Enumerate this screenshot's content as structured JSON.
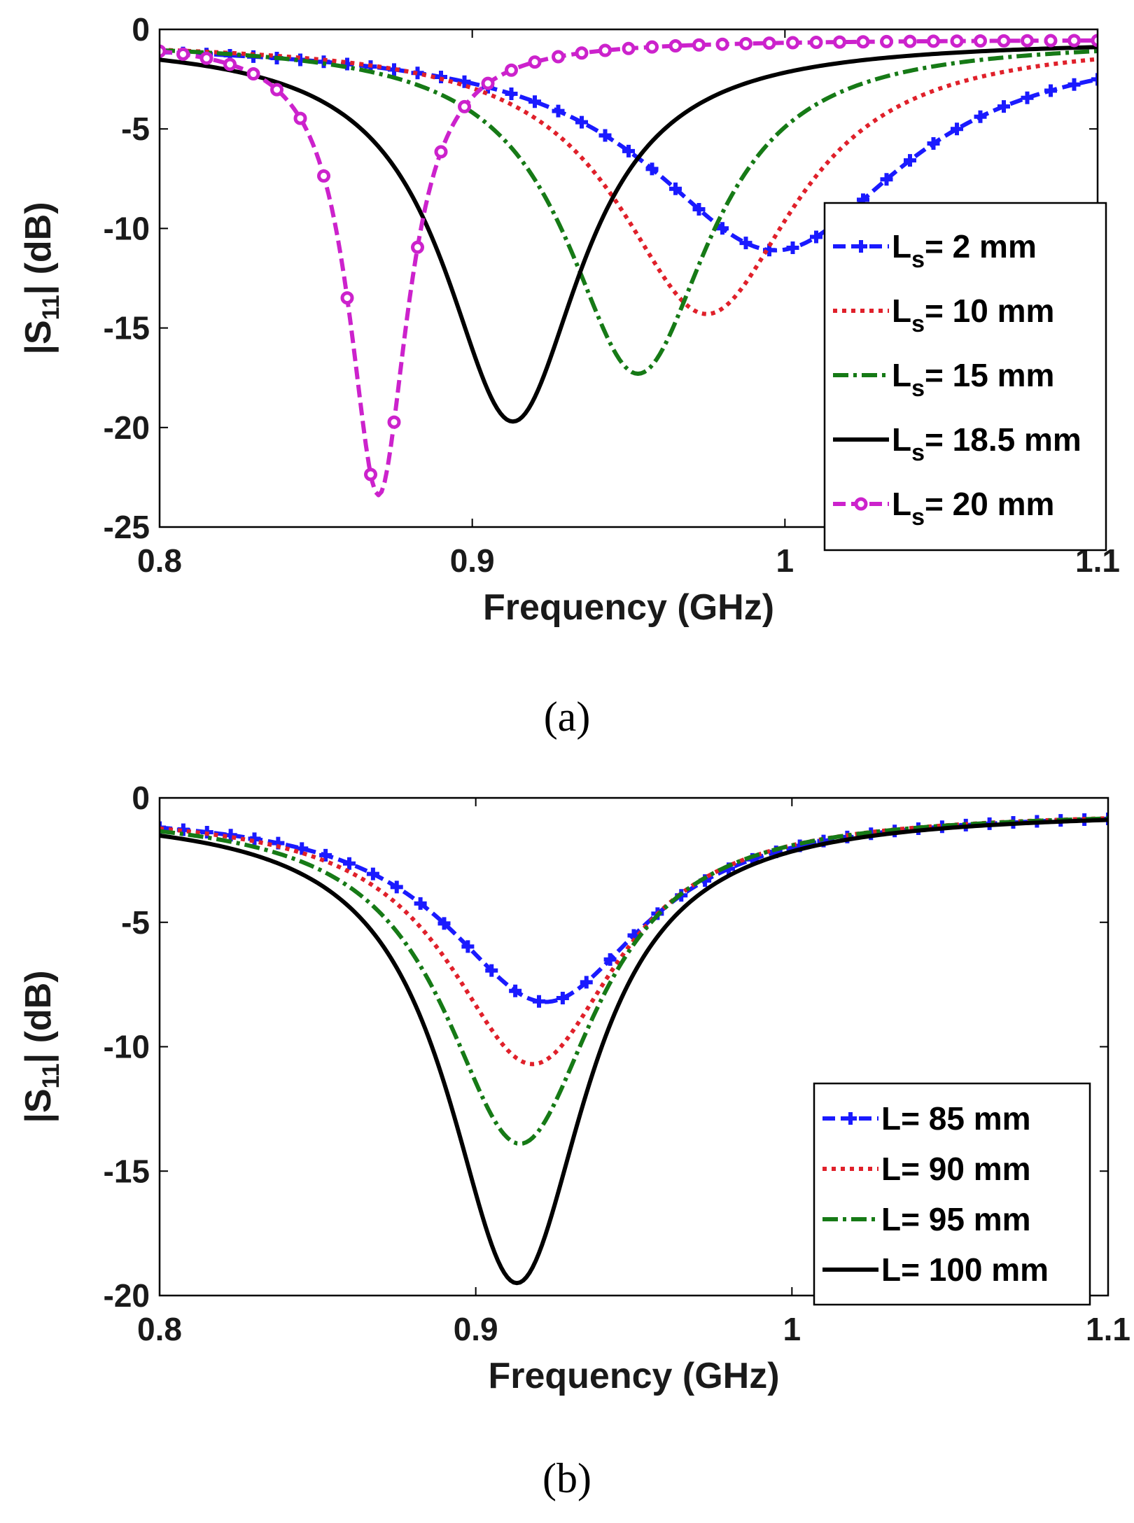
{
  "chart_data": [
    {
      "type": "line",
      "panel": "a",
      "caption": "(a)",
      "xlabel": "Frequency (GHz)",
      "ylabel_prefix": "|S",
      "ylabel_sub": "11",
      "ylabel_suffix": "| (dB)",
      "xlim": [
        0.8,
        1.1
      ],
      "ylim": [
        -25,
        0
      ],
      "xticks": [
        0.8,
        0.9,
        1.0,
        1.1
      ],
      "xtick_labels": [
        "0.8",
        "0.9",
        "1",
        "1.1"
      ],
      "yticks": [
        0,
        -5,
        -10,
        -15,
        -20,
        -25
      ],
      "ytick_labels": [
        "0",
        "-5",
        "-10",
        "-15",
        "-20",
        "-25"
      ],
      "legend_position": "right",
      "series": [
        {
          "name": "L = 2 mm",
          "legend_main": "L",
          "legend_sub": "s",
          "legend_rest": "= 2 mm",
          "color": "#1a1aff",
          "dash": "18,8",
          "marker": "plus",
          "f0": 0.997,
          "depth": 10.6,
          "q": 10
        },
        {
          "name": "L = 10 mm",
          "legend_main": "L",
          "legend_sub": "s",
          "legend_rest": "= 10 mm",
          "color": "#e0202a",
          "dash": "6,7",
          "marker": "none",
          "f0": 0.975,
          "depth": 13.8,
          "q": 14
        },
        {
          "name": "L = 15 mm",
          "legend_main": "L",
          "legend_sub": "s",
          "legend_rest": "= 15 mm",
          "color": "#167a16",
          "dash": "22,7,5,7",
          "marker": "none",
          "f0": 0.953,
          "depth": 16.8,
          "q": 17
        },
        {
          "name": "L = 18.5 mm",
          "legend_main": "L",
          "legend_sub": "s",
          "legend_rest": "= 18.5 mm",
          "color": "#000000",
          "dash": "",
          "marker": "none",
          "f0": 0.913,
          "depth": 19.2,
          "q": 17
        },
        {
          "name": "L = 20 mm",
          "legend_main": "L",
          "legend_sub": "s",
          "legend_rest": "= 20 mm",
          "color": "#cc22cc",
          "dash": "18,8",
          "marker": "circle",
          "f0": 0.87,
          "depth": 22.9,
          "q": 38
        }
      ]
    },
    {
      "type": "line",
      "panel": "b",
      "caption": "(b)",
      "xlabel": "Frequency (GHz)",
      "ylabel_prefix": "|S",
      "ylabel_sub": "11",
      "ylabel_suffix": "| (dB)",
      "xlim": [
        0.8,
        1.1
      ],
      "ylim": [
        -20,
        0
      ],
      "xticks": [
        0.8,
        0.9,
        1.0,
        1.1
      ],
      "xtick_labels": [
        "0.8",
        "0.9",
        "1",
        "1.1"
      ],
      "yticks": [
        0,
        -5,
        -10,
        -15,
        -20
      ],
      "ytick_labels": [
        "0",
        "-5",
        "-10",
        "-15",
        "-20"
      ],
      "legend_position": "bottom-right",
      "series": [
        {
          "name": "L= 85 mm",
          "legend_main": "L",
          "legend_sub": "",
          "legend_rest": "= 85 mm",
          "color": "#1a1aff",
          "dash": "18,8",
          "marker": "plus",
          "f0": 0.922,
          "depth": 7.7,
          "q": 12
        },
        {
          "name": "L= 90 mm",
          "legend_main": "L",
          "legend_sub": "",
          "legend_rest": "= 90 mm",
          "color": "#e0202a",
          "dash": "6,7",
          "marker": "none",
          "f0": 0.918,
          "depth": 10.2,
          "q": 14
        },
        {
          "name": "L= 95 mm",
          "legend_main": "L",
          "legend_sub": "",
          "legend_rest": "= 95 mm",
          "color": "#167a16",
          "dash": "22,7,5,7",
          "marker": "none",
          "f0": 0.914,
          "depth": 13.4,
          "q": 15.5
        },
        {
          "name": "L= 100 mm",
          "legend_main": "L",
          "legend_sub": "",
          "legend_rest": "= 100 mm",
          "color": "#000000",
          "dash": "",
          "marker": "none",
          "f0": 0.913,
          "depth": 19.0,
          "q": 17
        }
      ]
    }
  ]
}
